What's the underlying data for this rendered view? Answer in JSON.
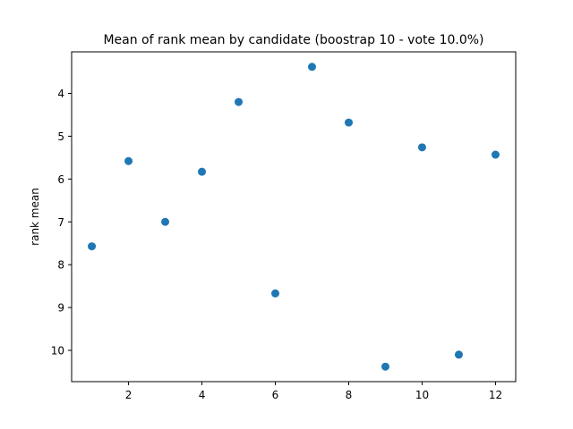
{
  "chart_data": {
    "type": "scatter",
    "title": "Mean of rank mean by candidate (boostrap 10 - vote 10.0%)",
    "xlabel": "",
    "ylabel": "rank mean",
    "x": [
      1,
      2,
      3,
      4,
      5,
      6,
      7,
      8,
      9,
      10,
      11,
      12
    ],
    "y": [
      7.57,
      5.58,
      7.0,
      5.83,
      4.2,
      8.67,
      3.38,
      4.68,
      10.38,
      5.26,
      10.1,
      5.43
    ],
    "xlim": [
      0.45,
      12.55
    ],
    "ylim": [
      10.73,
      3.03
    ],
    "y_inverted": true,
    "xticks": [
      2,
      4,
      6,
      8,
      10,
      12
    ],
    "yticks": [
      4,
      5,
      6,
      7,
      8,
      9,
      10
    ],
    "grid": false,
    "marker_color": "#1f77b4"
  }
}
